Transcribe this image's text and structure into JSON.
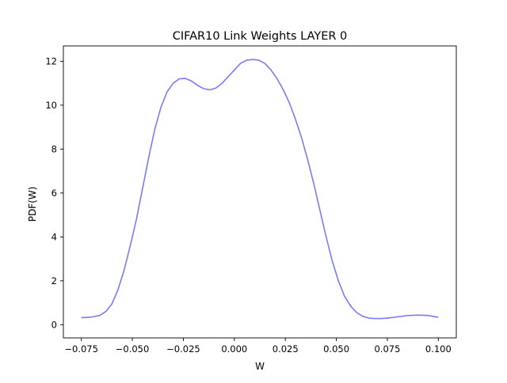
{
  "chart_data": {
    "type": "line",
    "title": "CIFAR10 Link Weights LAYER 0",
    "xlabel": "W",
    "ylabel": "PDF(W)",
    "xlim": [
      -0.0838,
      0.1088
    ],
    "ylim": [
      -0.6,
      12.7
    ],
    "grid": false,
    "x_ticks": [
      -0.075,
      -0.05,
      -0.025,
      0.0,
      0.025,
      0.05,
      0.075,
      0.1
    ],
    "x_tick_labels": [
      "−0.075",
      "−0.050",
      "−0.025",
      "0.000",
      "0.025",
      "0.050",
      "0.075",
      "0.100"
    ],
    "y_ticks": [
      0,
      2,
      4,
      6,
      8,
      10,
      12
    ],
    "y_tick_labels": [
      "0",
      "2",
      "4",
      "6",
      "8",
      "10",
      "12"
    ],
    "series": [
      {
        "color": "#7b7bf7",
        "x": [
          -0.075,
          -0.07,
          -0.066,
          -0.063,
          -0.06,
          -0.057,
          -0.054,
          -0.051,
          -0.048,
          -0.045,
          -0.042,
          -0.039,
          -0.036,
          -0.033,
          -0.03,
          -0.027,
          -0.024,
          -0.021,
          -0.018,
          -0.015,
          -0.012,
          -0.009,
          -0.006,
          -0.003,
          0.0,
          0.003,
          0.006,
          0.009,
          0.012,
          0.015,
          0.018,
          0.021,
          0.024,
          0.027,
          0.03,
          0.033,
          0.036,
          0.039,
          0.042,
          0.045,
          0.048,
          0.051,
          0.054,
          0.057,
          0.06,
          0.063,
          0.066,
          0.069,
          0.072,
          0.075,
          0.08,
          0.085,
          0.09,
          0.095,
          0.1
        ],
        "y": [
          0.32,
          0.35,
          0.42,
          0.6,
          0.95,
          1.6,
          2.5,
          3.6,
          4.8,
          6.2,
          7.6,
          8.9,
          9.9,
          10.6,
          11.0,
          11.2,
          11.22,
          11.1,
          10.9,
          10.75,
          10.7,
          10.78,
          11.0,
          11.3,
          11.6,
          11.9,
          12.05,
          12.08,
          12.05,
          11.9,
          11.6,
          11.2,
          10.7,
          10.1,
          9.35,
          8.5,
          7.5,
          6.4,
          5.2,
          4.0,
          2.9,
          2.0,
          1.3,
          0.85,
          0.55,
          0.38,
          0.3,
          0.28,
          0.28,
          0.3,
          0.36,
          0.42,
          0.44,
          0.42,
          0.34
        ]
      }
    ]
  }
}
